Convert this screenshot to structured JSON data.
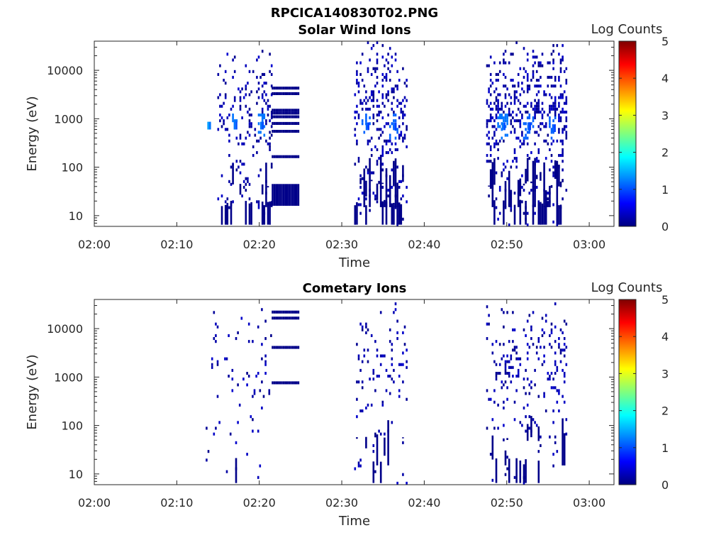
{
  "figure": {
    "title": "RPCICA140830T02.PNG"
  },
  "colorbar": {
    "label": "Log Counts",
    "min": 0,
    "max": 5,
    "ticks": [
      "0",
      "1",
      "2",
      "3",
      "4",
      "5"
    ],
    "colormap": "jet",
    "colors": [
      "#00007f",
      "#0000ff",
      "#007fff",
      "#00ffff",
      "#7fff7f",
      "#ffff00",
      "#ff7f00",
      "#ff0000",
      "#7f0000"
    ]
  },
  "chart_data": [
    {
      "type": "heatmap",
      "title": "Solar Wind Ions",
      "xlabel": "Time",
      "ylabel": "Energy (eV)",
      "xlim_minutes": [
        0,
        63
      ],
      "xticks": [
        "02:00",
        "02:10",
        "02:20",
        "02:30",
        "02:40",
        "02:50",
        "03:00"
      ],
      "yscale": "log",
      "ylim": [
        6,
        40000
      ],
      "yticks": [
        "10",
        "100",
        "1000",
        "10000"
      ],
      "gaps": [
        [
          12.9,
          15.5
        ],
        [
          17.3,
          18.5
        ]
      ],
      "segments": [
        {
          "t0": 12.9,
          "t1": 24.8,
          "dense_from": 21.5,
          "density": 0.33,
          "shape": "ramp",
          "band_min": 14.9,
          "band_max": 24.8,
          "pattern_seed": 1,
          "streaks": [
            1310,
            4300,
            3300,
            1500,
            1100,
            800,
            550,
            165
          ],
          "block": {
            "t0": 21.5,
            "t1": 24.8,
            "emin": 16,
            "emax": 45
          },
          "hot": [
            [
              13.7,
              720,
              1.4
            ],
            [
              16.9,
              720,
              1.2
            ],
            [
              20.1,
              720,
              1.2
            ]
          ]
        },
        {
          "t0": 31.5,
          "t1": 37.8,
          "density": 0.32,
          "shape": "plateau",
          "band_min": 31.5,
          "band_max": 37.8,
          "pattern_seed": 2,
          "hot": [
            [
              32.9,
              700,
              1.1
            ],
            [
              36.2,
              700,
              1.1
            ]
          ]
        },
        {
          "t0": 47.5,
          "t1": 57.2,
          "density": 0.38,
          "shape": "plateau",
          "band_min": 47.5,
          "band_max": 57.2,
          "pattern_seed": 3,
          "hot": [
            [
              49.4,
              700,
              1.2
            ],
            [
              52.5,
              700,
              1.1
            ],
            [
              55.5,
              640,
              1.1
            ]
          ]
        }
      ]
    },
    {
      "type": "heatmap",
      "title": "Cometary Ions",
      "xlabel": "Time",
      "ylabel": "Energy (eV)",
      "xlim_minutes": [
        0,
        63
      ],
      "xticks": [
        "02:00",
        "02:10",
        "02:20",
        "02:30",
        "02:40",
        "02:50",
        "03:00"
      ],
      "yscale": "log",
      "ylim": [
        6,
        40000
      ],
      "yticks": [
        "10",
        "100",
        "1000",
        "10000"
      ],
      "gaps": [],
      "segments": [
        {
          "t0": 13.5,
          "t1": 24.8,
          "dense_from": 21.5,
          "density": 0.1,
          "shape": "ramp",
          "band_min": 13.5,
          "band_max": 24.8,
          "pattern_seed": 4,
          "streaks": [
            22000,
            16500,
            4100,
            760
          ],
          "block": null,
          "hot": []
        },
        {
          "t0": 31.5,
          "t1": 37.8,
          "density": 0.12,
          "shape": "plateau",
          "band_min": 31.5,
          "band_max": 37.8,
          "pattern_seed": 5,
          "hot": []
        },
        {
          "t0": 47.5,
          "t1": 57.2,
          "density": 0.16,
          "shape": "plateau",
          "band_min": 47.5,
          "band_max": 57.2,
          "pattern_seed": 6,
          "hot": []
        }
      ]
    }
  ]
}
